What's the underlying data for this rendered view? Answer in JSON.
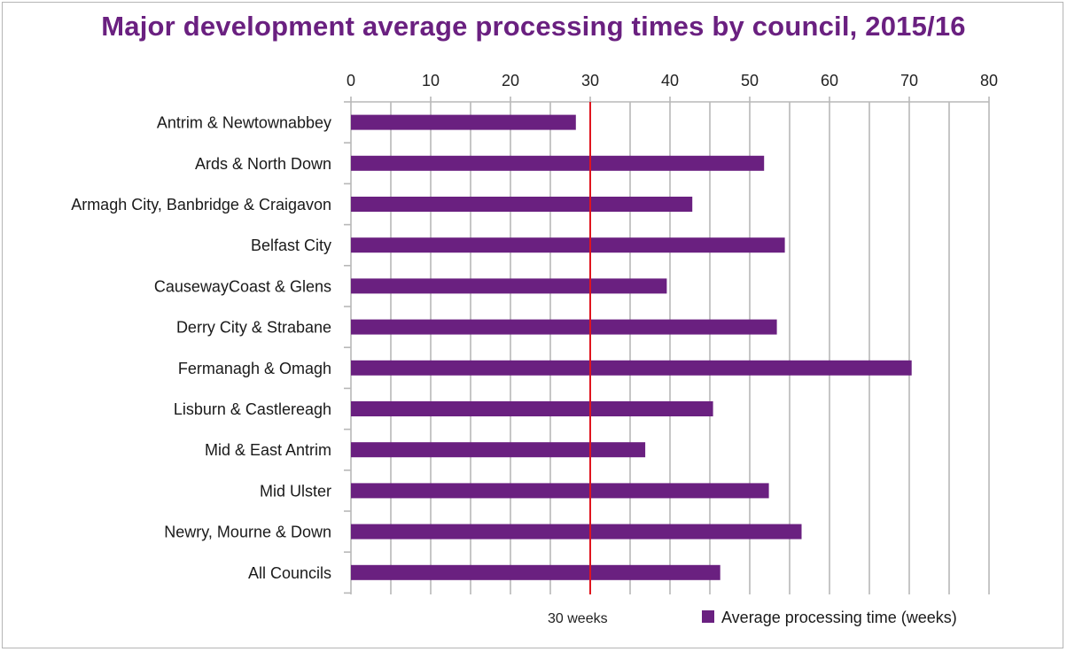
{
  "chart_data": {
    "type": "bar",
    "orientation": "horizontal",
    "title": "Major development average processing times by council, 2015/16",
    "categories": [
      "Antrim & Newtownabbey",
      "Ards & North Down",
      "Armagh City, Banbridge & Craigavon",
      "Belfast City",
      "CausewayCoast & Glens",
      "Derry City & Strabane",
      "Fermanagh & Omagh",
      "Lisburn & Castlereagh",
      "Mid & East Antrim",
      "Mid Ulster",
      "Newry, Mourne & Down",
      "All Councils"
    ],
    "series": [
      {
        "name": "Average processing time (weeks)",
        "values": [
          28.2,
          51.8,
          42.8,
          54.4,
          39.6,
          53.4,
          70.3,
          45.4,
          36.9,
          52.4,
          56.5,
          46.3
        ]
      }
    ],
    "xlim": [
      0,
      80
    ],
    "xticks": [
      0,
      10,
      20,
      30,
      40,
      50,
      60,
      70,
      80
    ],
    "x_axis_position": "top",
    "grid": true,
    "reference_line": {
      "value": 30,
      "label": "30 weeks",
      "color": "#e0141e"
    },
    "bar_color": "#6a2080",
    "legend_position": "bottom-right"
  }
}
